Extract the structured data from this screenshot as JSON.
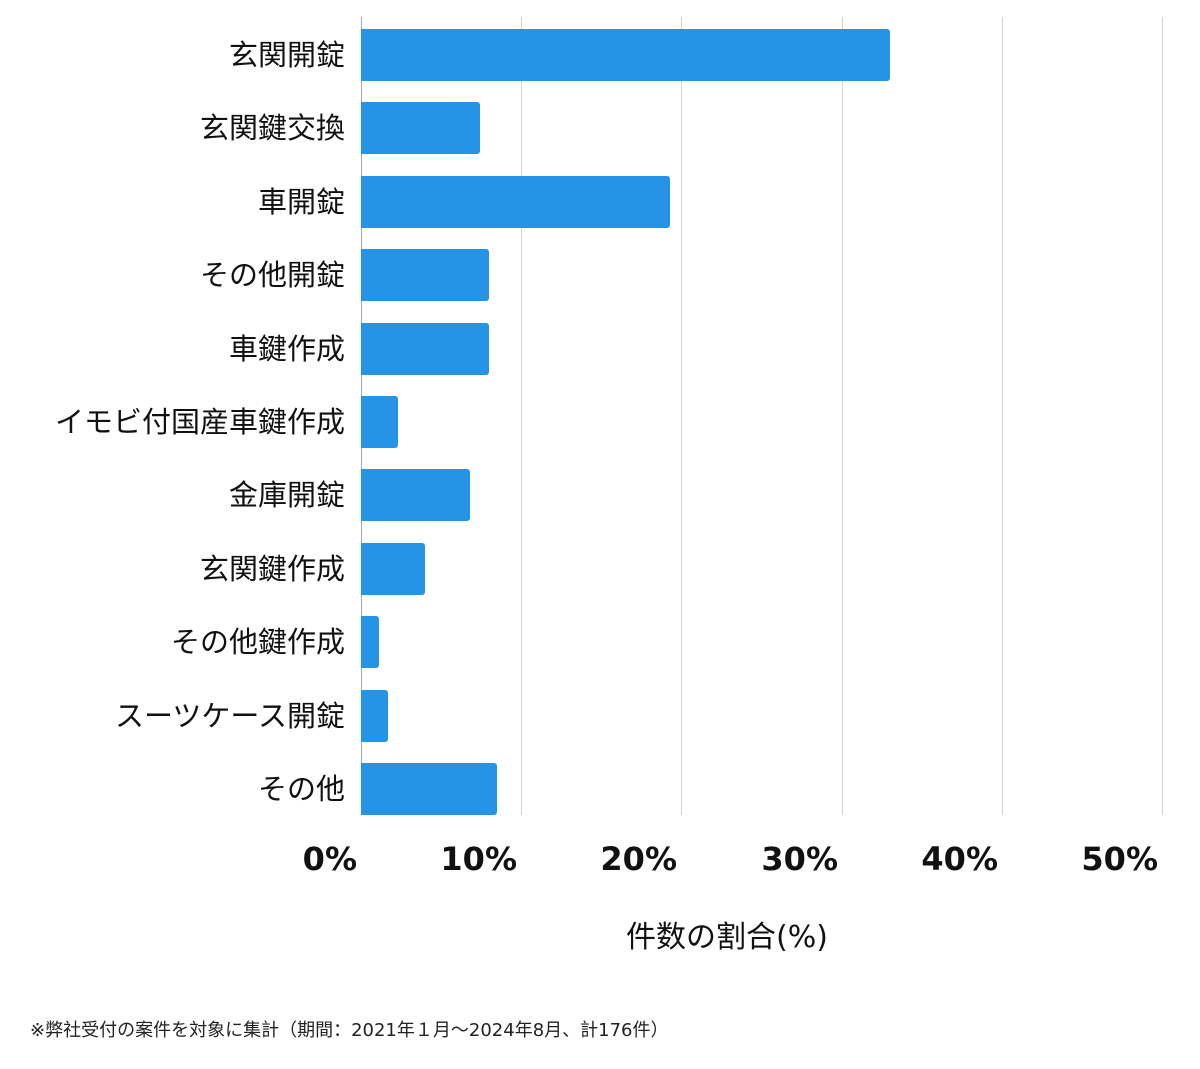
{
  "chart_data": {
    "type": "bar",
    "orientation": "horizontal",
    "title": "",
    "xlabel": "件数の割合(%)",
    "ylabel": "",
    "xlim": [
      0,
      50
    ],
    "x_ticks": [
      "0%",
      "10%",
      "20%",
      "30%",
      "40%",
      "50%"
    ],
    "grid": true,
    "legend": null,
    "bar_color": "#2694e6",
    "categories": [
      "玄関開錠",
      "玄関鍵交換",
      "車開錠",
      "その他開錠",
      "車鍵作成",
      "イモビ付国産車鍵作成",
      "金庫開錠",
      "玄関鍵作成",
      "その他鍵作成",
      "スーツケース開錠",
      "その他"
    ],
    "values": [
      33.0,
      7.4,
      19.3,
      8.0,
      8.0,
      2.3,
      6.8,
      4.0,
      1.1,
      1.7,
      8.5
    ],
    "annotation": "※弊社受付の案件を対象に集計（期間：2021年１月～2024年8月、計176件）"
  },
  "axis": {
    "ticks": [
      {
        "label": "0%",
        "value": 0
      },
      {
        "label": "10%",
        "value": 10
      },
      {
        "label": "20%",
        "value": 20
      },
      {
        "label": "30%",
        "value": 30
      },
      {
        "label": "40%",
        "value": 40
      },
      {
        "label": "50%",
        "value": 50
      }
    ],
    "xlabel": "件数の割合(%)"
  },
  "footnote": "※弊社受付の案件を対象に集計（期間：2021年１月～2024年8月、計176件）"
}
